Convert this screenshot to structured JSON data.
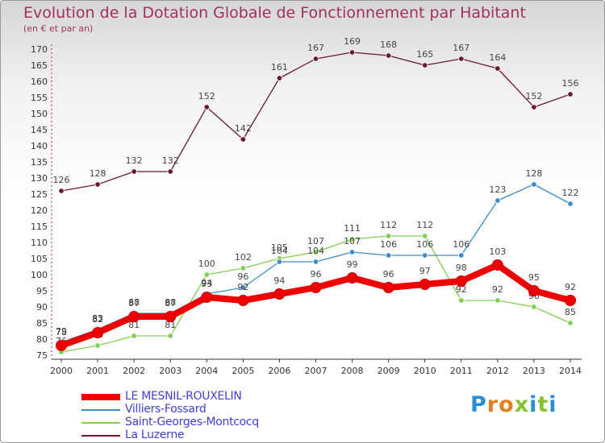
{
  "title": "Evolution de la Dotation Globale de Fonctionnement par Habitant",
  "subtitle": "(en € et par an)",
  "brand": {
    "letters": [
      {
        "ch": "P",
        "color": "#2a8fd0"
      },
      {
        "ch": "r",
        "color": "#e08020"
      },
      {
        "ch": "o",
        "color": "#e08020"
      },
      {
        "ch": "x",
        "color": "#88c030"
      },
      {
        "ch": "i",
        "color": "#2a8fd0"
      },
      {
        "ch": "t",
        "color": "#88c030"
      },
      {
        "ch": "i",
        "color": "#2a8fd0"
      }
    ]
  },
  "chart_data": {
    "type": "line",
    "x": [
      "2000",
      "2001",
      "2002",
      "2003",
      "2004",
      "2005",
      "2006",
      "2007",
      "2008",
      "2009",
      "2010",
      "2011",
      "2012",
      "2013",
      "2014"
    ],
    "ylim": [
      75,
      170
    ],
    "ytick_step": 5,
    "grid": false,
    "legend_position": "bottom-left",
    "series": [
      {
        "name": "LE MESNIL-ROUXELIN",
        "color": "#ee0000",
        "bold": true,
        "values": [
          78,
          82,
          87,
          87,
          93,
          92,
          94,
          96,
          99,
          96,
          97,
          98,
          103,
          95,
          92
        ]
      },
      {
        "name": "Villiers-Fossard",
        "color": "#3a8cc8",
        "bold": false,
        "values": [
          79,
          83,
          88,
          88,
          94,
          96,
          104,
          104,
          107,
          106,
          106,
          106,
          123,
          128,
          122
        ]
      },
      {
        "name": "Saint-Georges-Montcocq",
        "color": "#80d050",
        "bold": false,
        "values": [
          76,
          78,
          81,
          81,
          100,
          102,
          105,
          107,
          111,
          112,
          112,
          92,
          92,
          90,
          85
        ]
      },
      {
        "name": "La Luzerne",
        "color": "#6a1a2a",
        "bold": false,
        "values": [
          126,
          128,
          132,
          132,
          152,
          142,
          161,
          167,
          169,
          168,
          165,
          167,
          164,
          152,
          156
        ]
      }
    ]
  }
}
